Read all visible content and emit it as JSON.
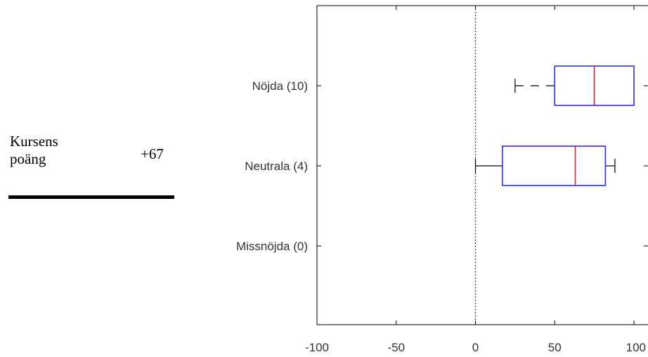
{
  "score": {
    "label": "Kursens poäng",
    "value": "+67"
  },
  "chart_data": {
    "type": "boxplot",
    "orientation": "horizontal",
    "xlim": [
      -100,
      100
    ],
    "x_ticks": [
      -100,
      -50,
      0,
      50,
      100
    ],
    "x_tick_labels": [
      "-100",
      "-50",
      "0",
      "50",
      "100"
    ],
    "reference_line": 0,
    "categories": [
      "Nöjda (10)",
      "Neutrala (4)",
      "Missnöjda (0)"
    ],
    "boxes": [
      {
        "category": "Nöjda (10)",
        "whisker_low": 25,
        "q1": 50,
        "median": 75,
        "q3": 100,
        "whisker_high": 100
      },
      {
        "category": "Neutrala (4)",
        "whisker_low": 0,
        "q1": 17,
        "median": 63,
        "q3": 82,
        "whisker_high": 88
      },
      null
    ],
    "colors": {
      "box": "#2b2bff",
      "median": "#e0202a",
      "whisker": "#000000",
      "axis": "#000000"
    },
    "grid": false
  }
}
